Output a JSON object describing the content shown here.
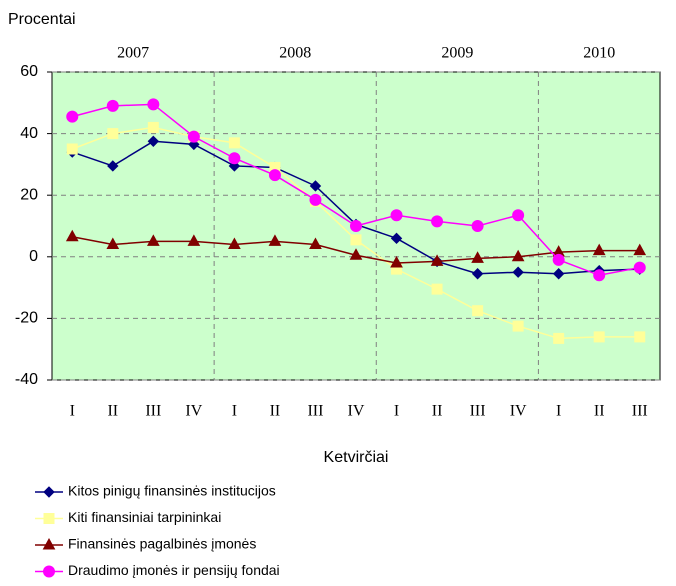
{
  "chart_data": {
    "type": "line",
    "y_axis_label": "Procentai",
    "x_axis_label": "Ketvirčiai",
    "categories": [
      "I",
      "II",
      "III",
      "IV",
      "I",
      "II",
      "III",
      "IV",
      "I",
      "II",
      "III",
      "IV",
      "I",
      "II",
      "III"
    ],
    "groups": [
      {
        "label": "2007",
        "size": 4
      },
      {
        "label": "2008",
        "size": 4
      },
      {
        "label": "2009",
        "size": 4
      },
      {
        "label": "2010",
        "size": 3
      }
    ],
    "ylim": [
      -40,
      60
    ],
    "yticks": [
      -40,
      -20,
      0,
      20,
      40,
      60
    ],
    "grid": true,
    "series": [
      {
        "name": "Kitos pinigų finansinės institucijos",
        "color": "#000080",
        "marker": "diamond",
        "values": [
          34,
          29.5,
          37.5,
          36.5,
          29.5,
          29,
          23,
          10.5,
          6,
          -1.5,
          -5.5,
          -5,
          -5.5,
          -4.5,
          -4
        ]
      },
      {
        "name": "Kiti finansiniai tarpininkai",
        "color": "#ffff99",
        "marker": "square",
        "values": [
          35,
          40,
          42,
          39,
          37,
          29,
          18,
          5.5,
          -4,
          -10.5,
          -17.5,
          -22.5,
          -26.5,
          -26,
          -26
        ]
      },
      {
        "name": "Finansinės pagalbinės įmonės",
        "color": "#800000",
        "marker": "triangle",
        "values": [
          6.5,
          4,
          5,
          5,
          4,
          5,
          4,
          0.5,
          -2,
          -1.5,
          -0.5,
          0,
          1.5,
          2,
          2
        ]
      },
      {
        "name": "Draudimo įmonės ir pensijų fondai",
        "color": "#ff00ff",
        "marker": "circle",
        "values": [
          45.5,
          49,
          49.5,
          39,
          32,
          26.5,
          18.5,
          10,
          13.5,
          11.5,
          10,
          13.5,
          -1,
          -6,
          -3.5
        ]
      }
    ]
  }
}
